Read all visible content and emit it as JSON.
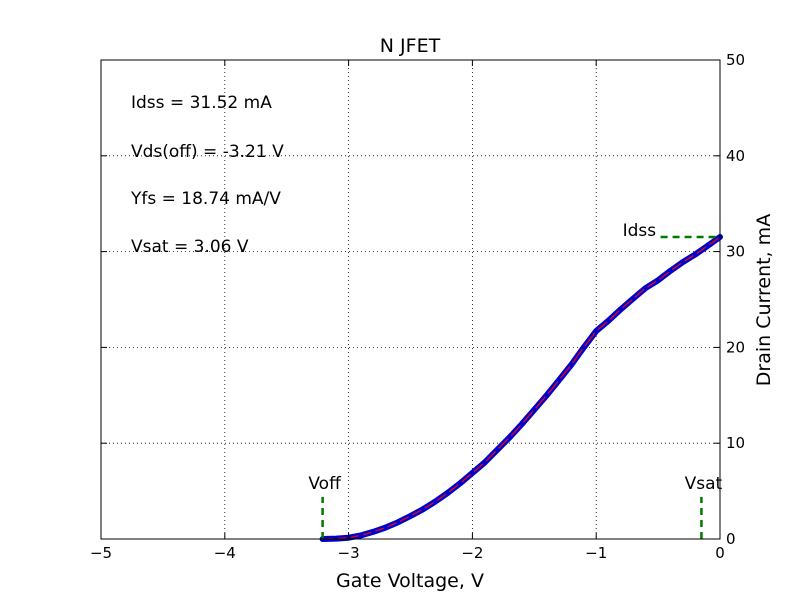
{
  "chart_data": {
    "type": "line",
    "title": "N JFET",
    "xlabel": "Gate Voltage, V",
    "ylabel": "Drain Current, mA",
    "xlim": [
      -5,
      0
    ],
    "ylim": [
      0,
      50
    ],
    "x_ticks": [
      -5,
      -4,
      -3,
      -2,
      -1,
      0
    ],
    "x_tick_labels": [
      "−5",
      "−4",
      "−3",
      "−2",
      "−1",
      "0"
    ],
    "y_ticks": [
      0,
      10,
      20,
      30,
      40,
      50
    ],
    "y_tick_labels": [
      "0",
      "10",
      "20",
      "30",
      "40",
      "50"
    ],
    "y_axis_side": "right",
    "grid": true,
    "grid_style": "dotted",
    "annotations": [
      "Idss = 31.52 mA",
      "Vds(off) = -3.21 V",
      "Yfs = 18.74 mA/V",
      "Vsat = 3.06 V"
    ],
    "series": [
      {
        "x": [
          -3.21,
          -3.1,
          -3.0,
          -2.9,
          -2.8,
          -2.7,
          -2.6,
          -2.5,
          -2.4,
          -2.3,
          -2.2,
          -2.1,
          -2.0,
          -1.9,
          -1.8,
          -1.7,
          -1.6,
          -1.5,
          -1.4,
          -1.3,
          -1.2,
          -1.1,
          -1.0,
          -0.9,
          -0.8,
          -0.7,
          -0.6,
          -0.5,
          -0.4,
          -0.3,
          -0.2,
          -0.1,
          0.0
        ],
        "y": [
          0.0,
          0.04,
          0.14,
          0.38,
          0.75,
          1.2,
          1.75,
          2.4,
          3.1,
          3.9,
          4.8,
          5.8,
          6.9,
          8.0,
          9.3,
          10.6,
          12.0,
          13.5,
          15.0,
          16.6,
          18.2,
          20.0,
          21.7,
          22.8,
          24.0,
          25.1,
          26.2,
          27.0,
          28.0,
          28.9,
          29.7,
          30.6,
          31.52
        ],
        "color": "#0000cc",
        "line_color": "#ff0000"
      }
    ],
    "markers": [
      {
        "label": "Idss",
        "axis": "y",
        "value": 31.52,
        "color": "#007a00"
      },
      {
        "label": "Voff",
        "axis": "x",
        "value": -3.21,
        "color": "#007a00"
      },
      {
        "label": "Vsat",
        "axis": "x",
        "value": -0.15,
        "color": "#007a00"
      }
    ]
  }
}
